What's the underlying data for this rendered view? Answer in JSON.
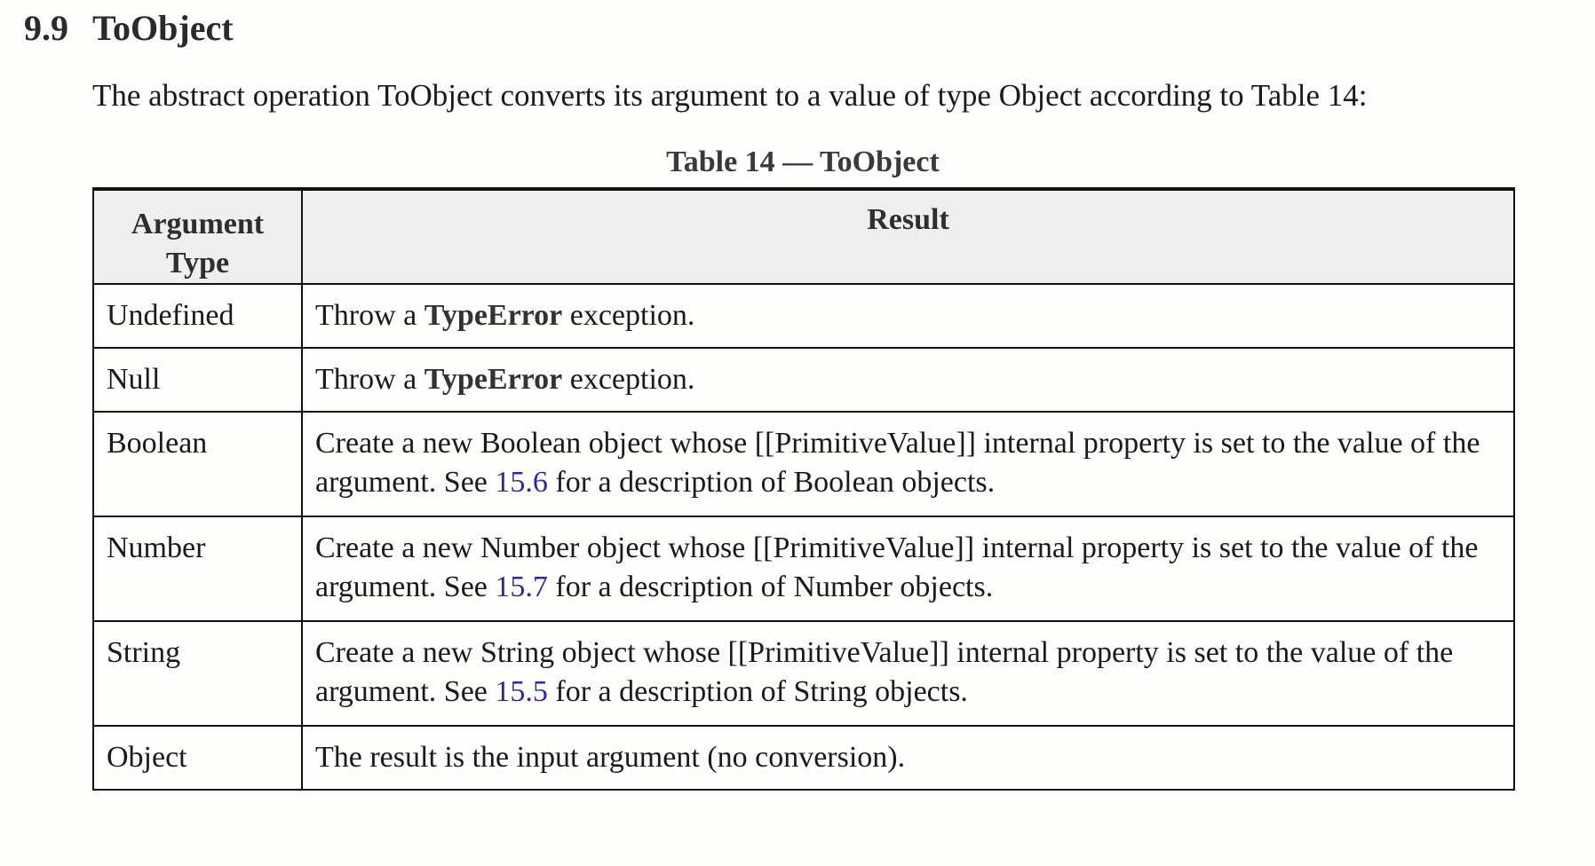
{
  "section": {
    "number": "9.9",
    "title": "ToObject"
  },
  "intro": "The abstract operation ToObject converts its argument to a value of type Object according to Table 14:",
  "table": {
    "caption": "Table 14 — ToObject",
    "headers": {
      "type_line1": "Argument",
      "type_line2": "Type",
      "result": "Result"
    },
    "rows": [
      {
        "type": "Undefined",
        "pre": "Throw a ",
        "bold": "TypeError",
        "post": " exception."
      },
      {
        "type": "Null",
        "pre": "Throw a ",
        "bold": "TypeError",
        "post": " exception."
      },
      {
        "type": "Boolean",
        "pre": "Create a new Boolean object whose [[PrimitiveValue]] internal property is set to the value of the argument. See ",
        "link": "15.6",
        "post": " for a description of Boolean objects."
      },
      {
        "type": "Number",
        "pre": "Create a new Number object whose [[PrimitiveValue]] internal property is set to the value of the argument. See ",
        "link": "15.7",
        "post": " for a description of Number objects."
      },
      {
        "type": "String",
        "pre": "Create a new String object whose [[PrimitiveValue]] internal property is set to the value of the argument. See ",
        "link": "15.5",
        "post": " for a description of String objects."
      },
      {
        "type": "Object",
        "pre": "The result is the input argument (no conversion)."
      }
    ]
  },
  "colors": {
    "link": "#2a2aa8",
    "header_bg": "#efefef",
    "border": "#111111"
  }
}
